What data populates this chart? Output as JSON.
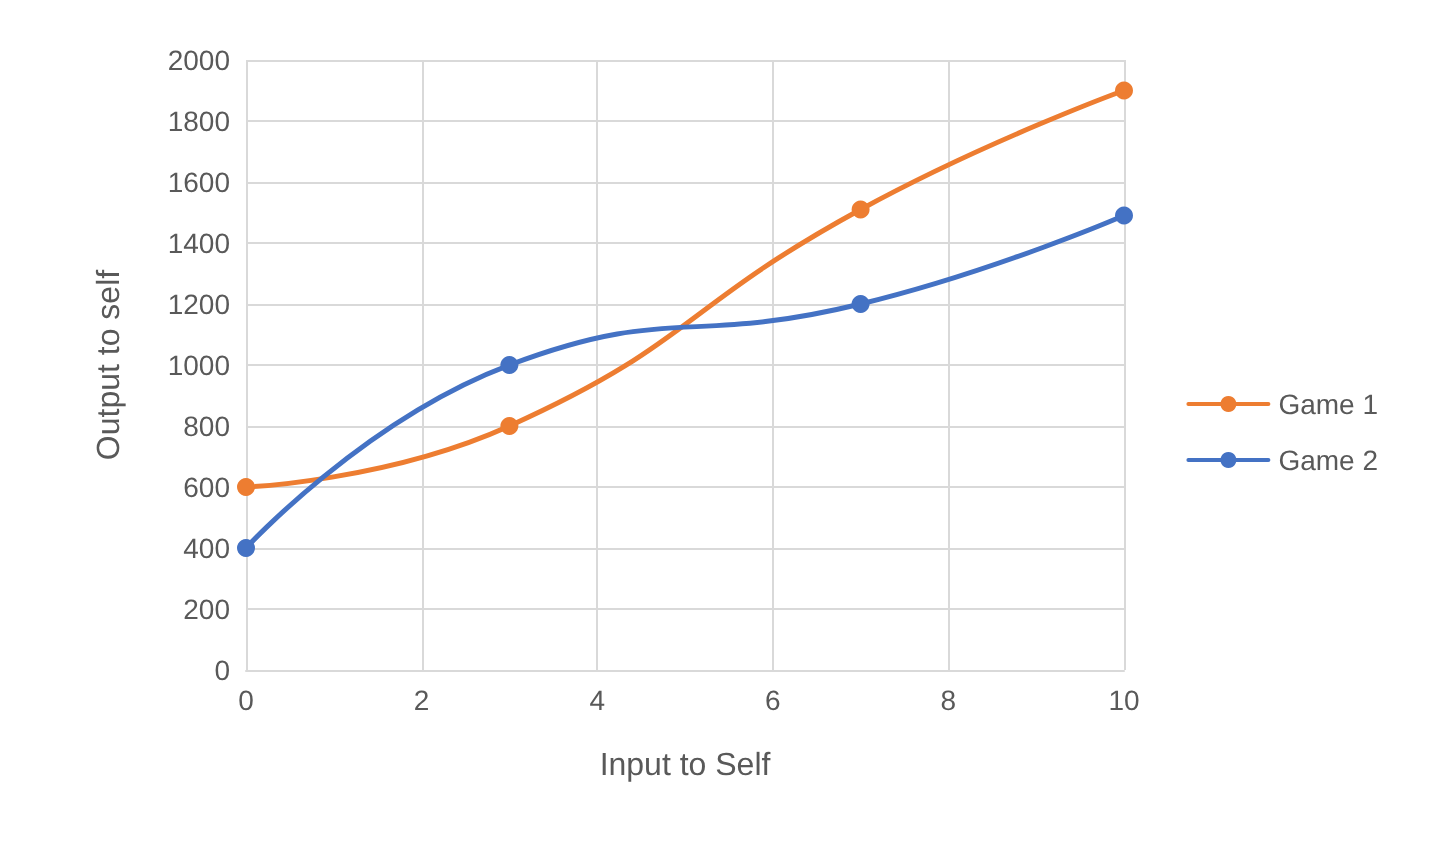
{
  "chart_data": {
    "type": "line",
    "xlabel": "Input to Self",
    "ylabel": "Output to self",
    "xlim": [
      0,
      10
    ],
    "xticks": [
      0,
      2,
      4,
      6,
      8,
      10
    ],
    "ylim": [
      0,
      2000
    ],
    "yticks": [
      0,
      200,
      400,
      600,
      800,
      1000,
      1200,
      1400,
      1600,
      1800,
      2000
    ],
    "grid": true,
    "legend": "right",
    "marker": "circle",
    "line_style": "solid",
    "series": [
      {
        "name": "Game 1",
        "color": "#ed7d31",
        "x": [
          0,
          3,
          7,
          10
        ],
        "values": [
          600,
          800,
          1510,
          1900
        ]
      },
      {
        "name": "Game 2",
        "color": "#4472c4",
        "x": [
          0,
          3,
          7,
          10
        ],
        "values": [
          400,
          1000,
          1200,
          1490
        ]
      }
    ]
  }
}
